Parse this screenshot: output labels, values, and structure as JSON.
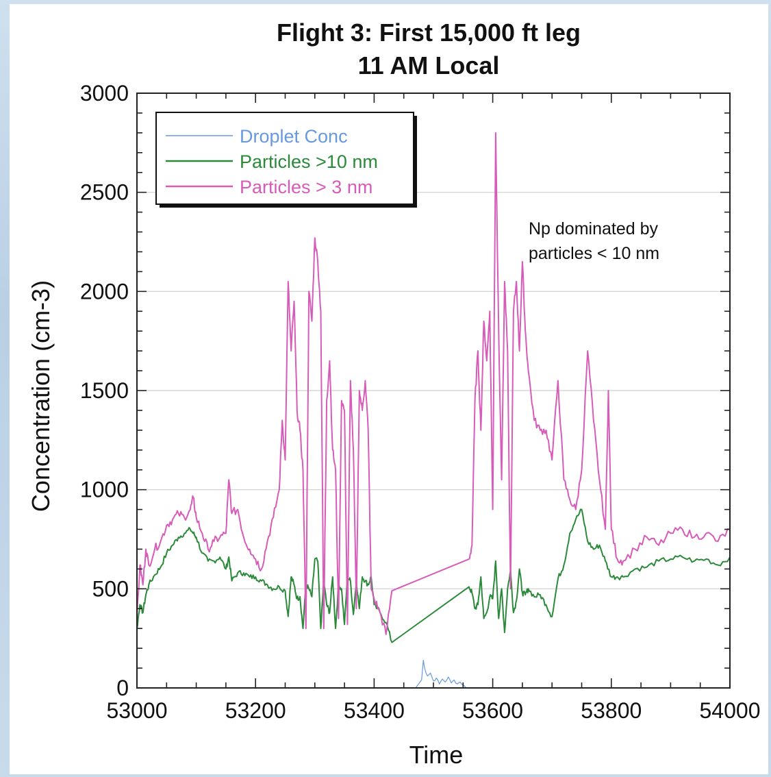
{
  "chart_data": {
    "type": "line",
    "title": "Flight 3: First 15,000 ft leg",
    "subtitle": "11 AM Local",
    "xlabel": "Time",
    "ylabel": "Concentration (cm-3)",
    "xlim": [
      53000,
      54000
    ],
    "ylim": [
      0,
      3000
    ],
    "x_ticks": [
      "53000",
      "53200",
      "53400",
      "53600",
      "53800",
      "54000"
    ],
    "y_ticks": [
      "0",
      "500",
      "1000",
      "1500",
      "2000",
      "2500",
      "3000"
    ],
    "grid": "horizontal",
    "legend_position": "top-left",
    "annotation": [
      "Np dominated by",
      "particles < 10 nm"
    ],
    "series": [
      {
        "name": "Droplet Conc",
        "color": "#6699dd",
        "x": [
          53470,
          53480,
          53483,
          53486,
          53490,
          53495,
          53500,
          53505,
          53510,
          53515,
          53520,
          53525,
          53530,
          53535,
          53540,
          53545,
          53550,
          53555
        ],
        "y": [
          0,
          40,
          140,
          90,
          60,
          75,
          35,
          50,
          20,
          45,
          30,
          55,
          25,
          40,
          20,
          30,
          15,
          0
        ]
      },
      {
        "name": "Particles >10 nm",
        "color": "#2a8a3a",
        "x": [
          53000,
          53005,
          53010,
          53015,
          53020,
          53030,
          53040,
          53050,
          53060,
          53070,
          53080,
          53090,
          53095,
          53100,
          53110,
          53120,
          53130,
          53140,
          53150,
          53155,
          53160,
          53170,
          53180,
          53190,
          53200,
          53210,
          53220,
          53230,
          53240,
          53250,
          53255,
          53260,
          53265,
          53270,
          53275,
          53280,
          53285,
          53290,
          53295,
          53300,
          53305,
          53310,
          53315,
          53320,
          53325,
          53330,
          53335,
          53340,
          53345,
          53350,
          53355,
          53360,
          53365,
          53370,
          53375,
          53380,
          53385,
          53390,
          53395,
          53400,
          53410,
          53420,
          53430,
          53560,
          53565,
          53570,
          53575,
          53580,
          53585,
          53590,
          53595,
          53600,
          53605,
          53610,
          53615,
          53620,
          53625,
          53630,
          53635,
          53640,
          53645,
          53650,
          53655,
          53660,
          53670,
          53680,
          53690,
          53700,
          53710,
          53720,
          53730,
          53740,
          53750,
          53760,
          53770,
          53780,
          53790,
          53800,
          53810,
          53820,
          53840,
          53860,
          53880,
          53900,
          53920,
          53940,
          53960,
          53980,
          54000
        ],
        "y": [
          300,
          420,
          380,
          470,
          520,
          570,
          610,
          680,
          720,
          760,
          780,
          800,
          780,
          760,
          680,
          640,
          640,
          660,
          600,
          660,
          540,
          580,
          580,
          560,
          560,
          540,
          520,
          500,
          510,
          490,
          360,
          560,
          520,
          450,
          460,
          300,
          520,
          500,
          460,
          650,
          640,
          300,
          540,
          420,
          380,
          560,
          300,
          520,
          500,
          320,
          560,
          540,
          370,
          540,
          400,
          560,
          540,
          520,
          560,
          420,
          380,
          330,
          230,
          510,
          480,
          400,
          420,
          560,
          350,
          380,
          460,
          450,
          640,
          350,
          500,
          280,
          500,
          590,
          380,
          440,
          600,
          480,
          470,
          500,
          460,
          470,
          420,
          360,
          550,
          620,
          780,
          850,
          900,
          740,
          700,
          720,
          640,
          560,
          560,
          560,
          600,
          610,
          640,
          650,
          660,
          640,
          650,
          620,
          660
        ],
        "connect_gap": [
          53430,
          53560
        ]
      },
      {
        "name": "Particles > 3 nm",
        "color": "#d75bb8",
        "x": [
          53000,
          53005,
          53010,
          53015,
          53020,
          53030,
          53040,
          53050,
          53060,
          53070,
          53080,
          53090,
          53095,
          53100,
          53110,
          53120,
          53130,
          53140,
          53150,
          53155,
          53160,
          53170,
          53180,
          53190,
          53200,
          53210,
          53220,
          53230,
          53240,
          53245,
          53250,
          53255,
          53260,
          53265,
          53270,
          53275,
          53280,
          53285,
          53290,
          53295,
          53300,
          53305,
          53310,
          53315,
          53320,
          53325,
          53330,
          53335,
          53340,
          53345,
          53350,
          53355,
          53360,
          53365,
          53370,
          53375,
          53380,
          53385,
          53390,
          53395,
          53400,
          53410,
          53420,
          53430,
          53560,
          53565,
          53570,
          53575,
          53580,
          53585,
          53590,
          53595,
          53600,
          53605,
          53610,
          53615,
          53620,
          53625,
          53630,
          53635,
          53640,
          53645,
          53650,
          53655,
          53660,
          53670,
          53680,
          53690,
          53700,
          53710,
          53720,
          53730,
          53740,
          53750,
          53760,
          53770,
          53780,
          53790,
          53795,
          53800,
          53810,
          53820,
          53840,
          53860,
          53880,
          53900,
          53920,
          53940,
          53960,
          53980,
          54000
        ],
        "y": [
          350,
          620,
          520,
          700,
          620,
          700,
          740,
          820,
          850,
          880,
          860,
          900,
          960,
          860,
          780,
          700,
          740,
          760,
          780,
          1050,
          880,
          900,
          760,
          700,
          650,
          600,
          740,
          860,
          1000,
          1350,
          1150,
          2050,
          1700,
          1950,
          1400,
          1300,
          1100,
          300,
          2000,
          1850,
          2270,
          2150,
          1900,
          300,
          1450,
          1650,
          1200,
          1100,
          350,
          1450,
          1400,
          320,
          1550,
          1200,
          400,
          1500,
          1400,
          1550,
          1300,
          500,
          450,
          380,
          270,
          490,
          650,
          720,
          1450,
          1700,
          1300,
          1850,
          1650,
          1900,
          900,
          2800,
          1800,
          1050,
          2050,
          1700,
          500,
          1900,
          2050,
          1700,
          2150,
          1800,
          1600,
          1350,
          1300,
          1300,
          1150,
          1550,
          1050,
          950,
          900,
          1100,
          1700,
          1350,
          1050,
          800,
          1500,
          800,
          650,
          640,
          700,
          760,
          720,
          780,
          800,
          760,
          780,
          740,
          800
        ],
        "connect_gap": [
          53430,
          53560
        ]
      }
    ]
  }
}
